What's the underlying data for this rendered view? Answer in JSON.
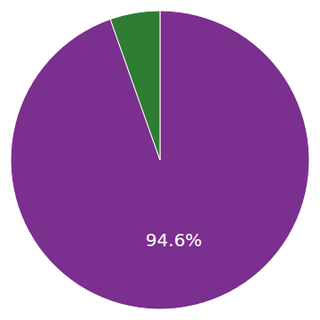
{
  "chart_data": {
    "type": "pie",
    "values": [
      94.6,
      5.4
    ],
    "colors": [
      "#7B2F8E",
      "#2E7D32"
    ],
    "data_labels": true,
    "value_labels": [
      "94.6%",
      null
    ]
  }
}
